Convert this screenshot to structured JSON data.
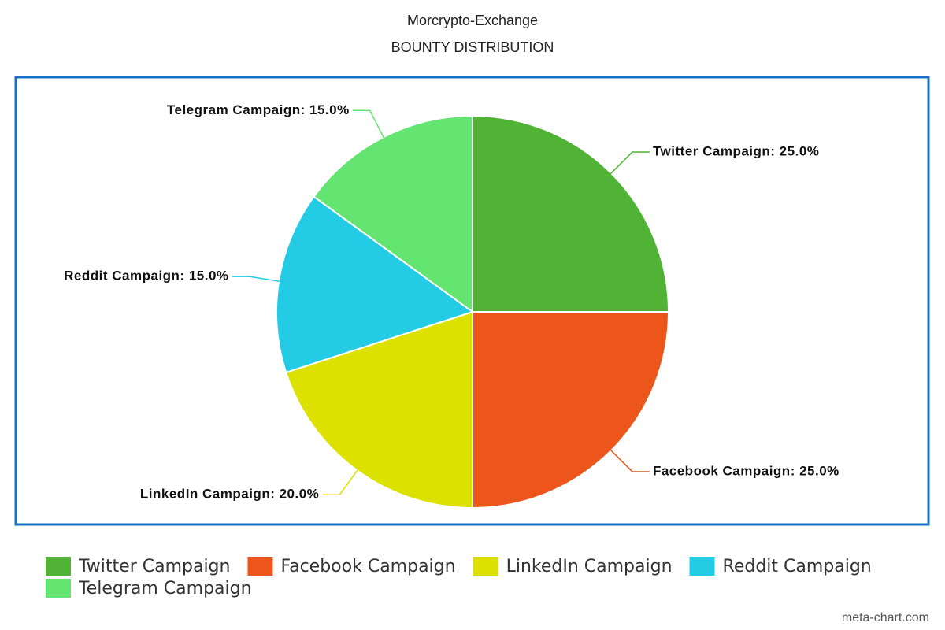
{
  "chart_data": {
    "type": "pie",
    "title": "Morcrypto-Exchange",
    "subtitle": "BOUNTY DISTRIBUTION",
    "categories": [
      "Twitter Campaign",
      "Facebook Campaign",
      "LinkedIn Campaign",
      "Reddit Campaign",
      "Telegram Campaign"
    ],
    "values": [
      25,
      25,
      20,
      15,
      15
    ],
    "value_labels": [
      "Twitter Campaign: 25.0%",
      "Facebook Campaign: 25.0%",
      "LinkedIn Campaign: 20.0%",
      "Reddit Campaign: 15.0%",
      "Telegram Campaign: 15.0%"
    ],
    "colors": [
      "#51b335",
      "#ec561b",
      "#dde100",
      "#24cbe5",
      "#64e572"
    ],
    "legend": "bottom",
    "credit": "meta-chart.com"
  }
}
